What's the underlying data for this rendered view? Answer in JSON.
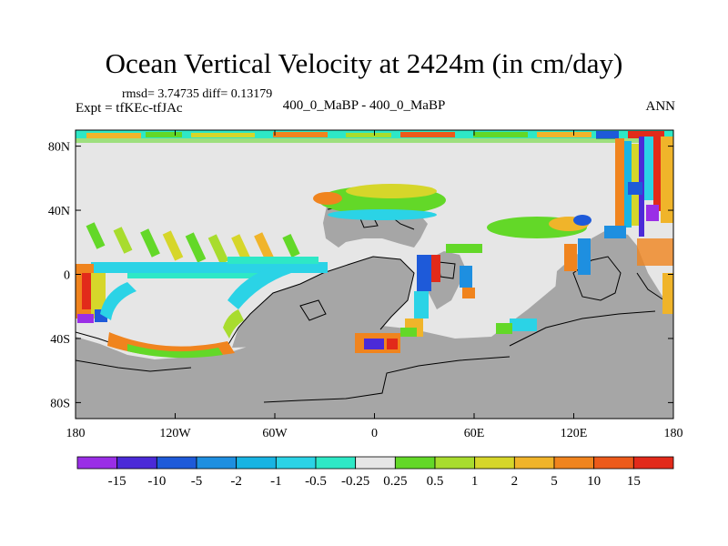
{
  "title": "Ocean Vertical Velocity at 2424m (in cm/day)",
  "stats_line": "rmsd= 3.74735 diff= 0.13179",
  "expt_line": "Expt = tfKEc-tfJAc",
  "center_label": "400_0_MaBP - 400_0_MaBP",
  "season_label": "ANN",
  "chart_data": {
    "type": "heatmap",
    "title": "Ocean Vertical Velocity at 2424m (in cm/day)",
    "x_axis": {
      "range": [
        -180,
        180
      ],
      "ticks": [
        {
          "value": -180,
          "label": "180"
        },
        {
          "value": -120,
          "label": "120W"
        },
        {
          "value": -60,
          "label": "60W"
        },
        {
          "value": 0,
          "label": "0"
        },
        {
          "value": 60,
          "label": "60E"
        },
        {
          "value": 120,
          "label": "120E"
        },
        {
          "value": 180,
          "label": "180"
        }
      ]
    },
    "y_axis": {
      "range": [
        -90,
        90
      ],
      "ticks": [
        {
          "value": 80,
          "label": "80N"
        },
        {
          "value": 40,
          "label": "40N"
        },
        {
          "value": 0,
          "label": "0"
        },
        {
          "value": -40,
          "label": "40S"
        },
        {
          "value": -80,
          "label": "80S"
        }
      ]
    },
    "colorbar": {
      "labels": [
        "-15",
        "-10",
        "-5",
        "-2",
        "-1",
        "-0.5",
        "-0.25",
        "0.25",
        "0.5",
        "1",
        "2",
        "5",
        "10",
        "15"
      ],
      "colors": [
        "#9a2ee6",
        "#4b2ad8",
        "#1e5ad9",
        "#1e8fe0",
        "#18b4e3",
        "#2bd3e6",
        "#2ee8c6",
        "#e6e6e6",
        "#63d828",
        "#a8dc2e",
        "#d6d62a",
        "#f0b42a",
        "#f0841e",
        "#ec5a1a",
        "#e22a1a"
      ],
      "land_color": "#a6a6a6",
      "neutral_color": "#e6e6e6"
    }
  }
}
